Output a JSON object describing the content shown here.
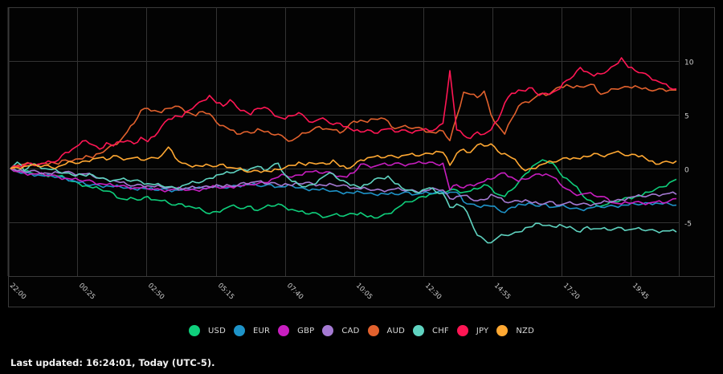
{
  "chart_data": {
    "type": "line",
    "title": "",
    "xlabel": "",
    "ylabel": "",
    "x_tick_labels": [
      "22:00",
      "00:25",
      "02:50",
      "05:15",
      "07:40",
      "10:05",
      "12:30",
      "14:55",
      "17:20",
      "19:45"
    ],
    "y_ticks": [
      10,
      5,
      0,
      -5
    ],
    "ylim": [
      -10,
      15
    ],
    "grid": true,
    "legend_position": "bottom",
    "x_index": [
      0,
      1,
      2,
      3,
      4,
      5,
      6,
      7,
      8,
      9,
      10,
      11,
      12,
      13,
      14,
      15,
      16,
      17,
      18,
      19,
      20,
      21,
      22,
      23,
      24,
      25,
      26,
      27,
      28,
      29,
      30,
      31,
      32,
      33,
      34,
      35,
      36,
      37,
      38,
      39,
      40,
      41,
      42,
      43,
      44,
      45,
      46,
      47,
      48,
      49,
      50,
      51,
      52,
      53,
      54,
      55,
      56,
      57,
      58,
      59,
      60,
      61,
      62,
      63,
      64,
      65,
      66,
      67,
      68,
      69,
      70,
      71,
      72,
      73,
      74,
      75,
      76,
      77,
      78,
      79,
      80,
      81,
      82,
      83,
      84,
      85,
      86,
      87,
      88,
      89,
      90,
      91,
      92,
      93,
      94,
      95,
      96,
      97
    ],
    "series": [
      {
        "name": "USD",
        "color": "#0fcf7c",
        "values": [
          0,
          -0.2,
          -0.3,
          -0.4,
          -0.5,
          -0.6,
          -0.6,
          -0.7,
          -0.9,
          -1.2,
          -1.4,
          -1.6,
          -1.8,
          -1.9,
          -2.1,
          -2.3,
          -2.8,
          -2.9,
          -2.8,
          -2.9,
          -2.6,
          -2.9,
          -3.0,
          -3.2,
          -3.4,
          -3.3,
          -3.5,
          -3.7,
          -3.9,
          -4.2,
          -4.0,
          -3.8,
          -3.5,
          -3.6,
          -3.7,
          -3.5,
          -3.9,
          -3.6,
          -3.5,
          -3.3,
          -3.6,
          -3.8,
          -4.0,
          -4.2,
          -4.1,
          -4.3,
          -4.5,
          -4.3,
          -4.4,
          -4.3,
          -4.2,
          -4.1,
          -4.5,
          -4.6,
          -4.4,
          -4.2,
          -3.8,
          -3.4,
          -3.1,
          -2.9,
          -2.6,
          -2.4,
          -2.3,
          -2.2,
          -2.0,
          -2.0,
          -2.2,
          -2.1,
          -1.9,
          -1.5,
          -1.8,
          -2.4,
          -2.6,
          -2.0,
          -1.3,
          -0.5,
          0.2,
          0.6,
          0.7,
          0.5,
          -0.4,
          -0.9,
          -1.5,
          -2.2,
          -2.9,
          -3.2,
          -3.5,
          -3.3,
          -3.1,
          -2.9,
          -2.7,
          -2.6,
          -2.5,
          -2.2,
          -1.9,
          -1.7,
          -1.3,
          -1.0
        ]
      },
      {
        "name": "EUR",
        "color": "#1e93c8",
        "values": [
          0,
          -0.3,
          -0.4,
          -0.5,
          -0.6,
          -0.7,
          -0.7,
          -0.8,
          -0.9,
          -1.1,
          -1.3,
          -1.5,
          -1.5,
          -1.6,
          -1.6,
          -1.7,
          -1.7,
          -1.8,
          -1.9,
          -1.8,
          -1.9,
          -2.0,
          -1.9,
          -2.0,
          -2.0,
          -2.0,
          -1.9,
          -1.8,
          -1.8,
          -1.7,
          -1.7,
          -1.8,
          -1.7,
          -1.6,
          -1.5,
          -1.5,
          -1.6,
          -1.6,
          -1.5,
          -1.7,
          -1.7,
          -1.6,
          -1.8,
          -1.9,
          -1.9,
          -2.0,
          -2.0,
          -2.1,
          -2.2,
          -2.2,
          -2.3,
          -2.2,
          -2.3,
          -2.4,
          -2.3,
          -2.4,
          -2.4,
          -2.3,
          -2.2,
          -2.4,
          -2.3,
          -2.3,
          -2.2,
          -2.2,
          -2.2,
          -2.2,
          -3.1,
          -3.3,
          -3.5,
          -3.4,
          -3.5,
          -3.8,
          -4.1,
          -3.6,
          -3.3,
          -3.4,
          -3.3,
          -3.5,
          -3.3,
          -3.6,
          -3.5,
          -3.6,
          -3.7,
          -3.8,
          -3.7,
          -3.6,
          -3.6,
          -3.5,
          -3.5,
          -3.4,
          -3.4,
          -3.3,
          -3.3,
          -3.2,
          -3.2,
          -3.3,
          -3.3,
          -3.4
        ]
      },
      {
        "name": "GBP",
        "color": "#c81ec0",
        "values": [
          0,
          -0.3,
          -0.4,
          -0.5,
          -0.5,
          -0.6,
          -0.6,
          -0.8,
          -0.9,
          -1.0,
          -1.1,
          -1.1,
          -1.2,
          -1.4,
          -1.5,
          -1.6,
          -1.6,
          -1.7,
          -1.8,
          -1.8,
          -1.9,
          -1.9,
          -2.0,
          -2.0,
          -1.9,
          -1.9,
          -2.0,
          -2.0,
          -1.9,
          -1.8,
          -1.7,
          -1.8,
          -1.7,
          -1.6,
          -1.6,
          -1.5,
          -1.4,
          -1.3,
          -1.0,
          -0.8,
          -0.6,
          -0.8,
          -0.6,
          -0.3,
          -0.3,
          -0.4,
          -0.3,
          -0.5,
          -0.7,
          -0.8,
          -0.4,
          0.4,
          0.3,
          0.2,
          0.4,
          0.3,
          0.5,
          0.4,
          0.4,
          0.5,
          0.5,
          0.6,
          0.4,
          0.5,
          -2.0,
          -1.5,
          -1.8,
          -1.5,
          -1.4,
          -1.2,
          -1.0,
          -0.6,
          -0.4,
          -0.8,
          -1.2,
          -1.0,
          -0.7,
          -0.5,
          -0.5,
          -0.8,
          -1.4,
          -1.9,
          -2.3,
          -2.4,
          -2.3,
          -2.5,
          -2.6,
          -2.8,
          -3.2,
          -3.3,
          -3.2,
          -3.1,
          -3.2,
          -3.2,
          -3.1,
          -3.2,
          -3.0,
          -2.8
        ]
      },
      {
        "name": "CAD",
        "color": "#a57ad3",
        "values": [
          0,
          -0.2,
          -0.3,
          -0.2,
          -0.3,
          -0.4,
          -0.5,
          -0.4,
          -0.3,
          -0.4,
          -0.5,
          -0.5,
          -0.7,
          -0.9,
          -1.0,
          -1.1,
          -1.3,
          -1.5,
          -1.6,
          -1.5,
          -1.6,
          -1.7,
          -1.7,
          -1.8,
          -1.8,
          -1.9,
          -1.8,
          -1.8,
          -1.7,
          -1.7,
          -1.5,
          -1.7,
          -1.6,
          -1.6,
          -1.3,
          -1.3,
          -1.2,
          -1.4,
          -1.3,
          -1.5,
          -1.4,
          -1.6,
          -1.4,
          -1.3,
          -1.4,
          -1.5,
          -1.6,
          -1.5,
          -1.6,
          -1.6,
          -1.8,
          -1.9,
          -1.9,
          -2.0,
          -2.0,
          -2.0,
          -1.9,
          -2.0,
          -2.0,
          -2.1,
          -2.1,
          -2.0,
          -1.9,
          -2.0,
          -2.8,
          -2.6,
          -2.5,
          -2.8,
          -3.0,
          -2.9,
          -2.4,
          -2.7,
          -3.1,
          -3.1,
          -3.0,
          -2.9,
          -3.2,
          -3.3,
          -3.2,
          -3.1,
          -3.4,
          -3.2,
          -3.3,
          -3.3,
          -3.3,
          -3.3,
          -3.2,
          -3.1,
          -3.0,
          -2.9,
          -2.7,
          -2.6,
          -2.6,
          -2.5,
          -2.4,
          -2.4,
          -2.3,
          -2.4
        ]
      },
      {
        "name": "AUD",
        "color": "#e2612d",
        "values": [
          0,
          0.3,
          0.4,
          0.4,
          0.3,
          0.5,
          0.6,
          0.4,
          0.8,
          0.7,
          0.9,
          1.2,
          1.0,
          1.4,
          1.8,
          2.2,
          2.6,
          3.4,
          4.2,
          5.4,
          5.6,
          5.4,
          5.2,
          5.6,
          5.8,
          5.6,
          5.2,
          4.9,
          5.3,
          5.1,
          4.3,
          4.0,
          3.6,
          3.2,
          3.4,
          3.3,
          3.7,
          3.4,
          3.2,
          3.2,
          2.8,
          2.6,
          3.0,
          3.3,
          3.6,
          3.9,
          3.7,
          3.6,
          3.3,
          3.8,
          4.4,
          4.5,
          4.3,
          4.6,
          4.7,
          4.4,
          3.7,
          3.9,
          3.8,
          3.8,
          3.7,
          3.4,
          3.3,
          3.5,
          2.6,
          4.8,
          7.1,
          6.9,
          6.6,
          7.2,
          5.0,
          4.0,
          3.2,
          4.6,
          5.8,
          6.2,
          6.4,
          6.9,
          6.8,
          7.2,
          7.6,
          7.8,
          7.5,
          7.6,
          7.7,
          7.8,
          6.9,
          7.1,
          7.4,
          7.5,
          7.6,
          7.7,
          7.4,
          7.3,
          7.3,
          7.4,
          7.3,
          7.3
        ]
      },
      {
        "name": "CHF",
        "color": "#5fd3c0",
        "values": [
          0,
          0.6,
          -0.2,
          0.4,
          0.3,
          0.0,
          -0.1,
          -0.3,
          -0.4,
          -0.6,
          -0.5,
          -0.7,
          -0.6,
          -0.9,
          -1.0,
          -1.1,
          -1.0,
          -1.1,
          -1.1,
          -1.2,
          -1.4,
          -1.5,
          -1.6,
          -1.7,
          -1.8,
          -1.6,
          -1.4,
          -1.3,
          -1.2,
          -0.9,
          -0.6,
          -0.5,
          -0.4,
          -0.2,
          -0.1,
          0.0,
          0.2,
          -0.2,
          0.2,
          0.5,
          -0.6,
          -1.2,
          -1.5,
          -1.7,
          -1.5,
          -1.0,
          -0.6,
          -0.5,
          -1.1,
          -1.3,
          -1.5,
          -1.8,
          -1.5,
          -1.0,
          -0.9,
          -0.7,
          -1.4,
          -1.8,
          -2.0,
          -2.2,
          -2.0,
          -1.8,
          -2.2,
          -2.3,
          -3.6,
          -3.3,
          -3.6,
          -4.8,
          -6.2,
          -6.6,
          -6.9,
          -6.4,
          -6.2,
          -6.1,
          -5.9,
          -5.5,
          -5.4,
          -5.1,
          -5.3,
          -5.4,
          -5.2,
          -5.5,
          -5.6,
          -5.9,
          -5.4,
          -5.6,
          -5.6,
          -5.7,
          -5.6,
          -5.5,
          -5.7,
          -5.6,
          -5.7,
          -5.7,
          -5.8,
          -5.8,
          -5.8,
          -5.9
        ]
      },
      {
        "name": "JPY",
        "color": "#ff1654",
        "values": [
          0,
          0.2,
          0.3,
          0.5,
          0.4,
          0.5,
          0.6,
          0.8,
          1.5,
          1.8,
          2.2,
          2.6,
          2.2,
          1.8,
          2.4,
          2.1,
          2.5,
          2.6,
          2.3,
          2.9,
          2.5,
          3.0,
          3.9,
          4.6,
          4.9,
          4.8,
          5.4,
          5.9,
          6.3,
          6.8,
          6.1,
          5.8,
          6.4,
          5.7,
          5.4,
          5.0,
          5.6,
          5.7,
          5.3,
          4.8,
          4.6,
          4.9,
          5.2,
          4.7,
          4.3,
          4.6,
          4.5,
          4.1,
          4.2,
          3.9,
          3.5,
          3.4,
          3.6,
          3.3,
          3.6,
          3.7,
          3.4,
          3.6,
          3.4,
          3.5,
          3.6,
          3.5,
          3.7,
          4.2,
          9.1,
          3.6,
          3.1,
          2.8,
          3.4,
          3.2,
          3.6,
          4.5,
          6.1,
          7.0,
          7.3,
          7.2,
          7.5,
          6.8,
          7.0,
          7.1,
          7.4,
          8.2,
          8.6,
          9.4,
          9.0,
          8.6,
          8.8,
          9.1,
          9.6,
          10.3,
          9.4,
          9.1,
          8.9,
          8.6,
          8.2,
          7.9,
          7.5,
          7.4
        ]
      },
      {
        "name": "NZD",
        "color": "#ffa832",
        "values": [
          0,
          0.1,
          0.2,
          0.3,
          0.2,
          0.3,
          0.1,
          0.2,
          0.4,
          0.6,
          0.5,
          0.7,
          0.9,
          1.0,
          0.8,
          1.2,
          1.0,
          0.9,
          1.0,
          0.8,
          0.9,
          1.0,
          1.2,
          2.0,
          1.0,
          0.5,
          0.3,
          0.3,
          0.2,
          0.3,
          0.2,
          0.4,
          0.1,
          0.0,
          -0.2,
          -0.3,
          -0.2,
          -0.2,
          -0.3,
          -0.1,
          0.1,
          0.3,
          0.6,
          0.3,
          0.5,
          0.5,
          0.4,
          0.8,
          0.2,
          0.0,
          0.3,
          0.8,
          1.0,
          1.1,
          1.0,
          1.2,
          1.1,
          1.2,
          1.3,
          1.2,
          1.3,
          1.4,
          1.6,
          1.5,
          0.3,
          1.4,
          1.8,
          1.5,
          2.2,
          2.1,
          2.3,
          1.6,
          1.4,
          1.0,
          0.4,
          -0.2,
          0.0,
          0.3,
          0.5,
          0.6,
          0.8,
          1.0,
          1.0,
          0.9,
          1.1,
          1.4,
          1.2,
          1.3,
          1.5,
          1.4,
          1.2,
          1.3,
          1.2,
          0.7,
          0.4,
          0.6,
          0.6,
          0.7
        ]
      }
    ]
  },
  "legend": {
    "items": [
      {
        "label": "USD",
        "color": "#0fcf7c"
      },
      {
        "label": "EUR",
        "color": "#1e93c8"
      },
      {
        "label": "GBP",
        "color": "#c81ec0"
      },
      {
        "label": "CAD",
        "color": "#a57ad3"
      },
      {
        "label": "AUD",
        "color": "#e2612d"
      },
      {
        "label": "CHF",
        "color": "#5fd3c0"
      },
      {
        "label": "JPY",
        "color": "#ff1654"
      },
      {
        "label": "NZD",
        "color": "#ffa832"
      }
    ]
  },
  "footer": {
    "last_updated": "Last updated: 16:24:01, Today (UTC-5)."
  }
}
